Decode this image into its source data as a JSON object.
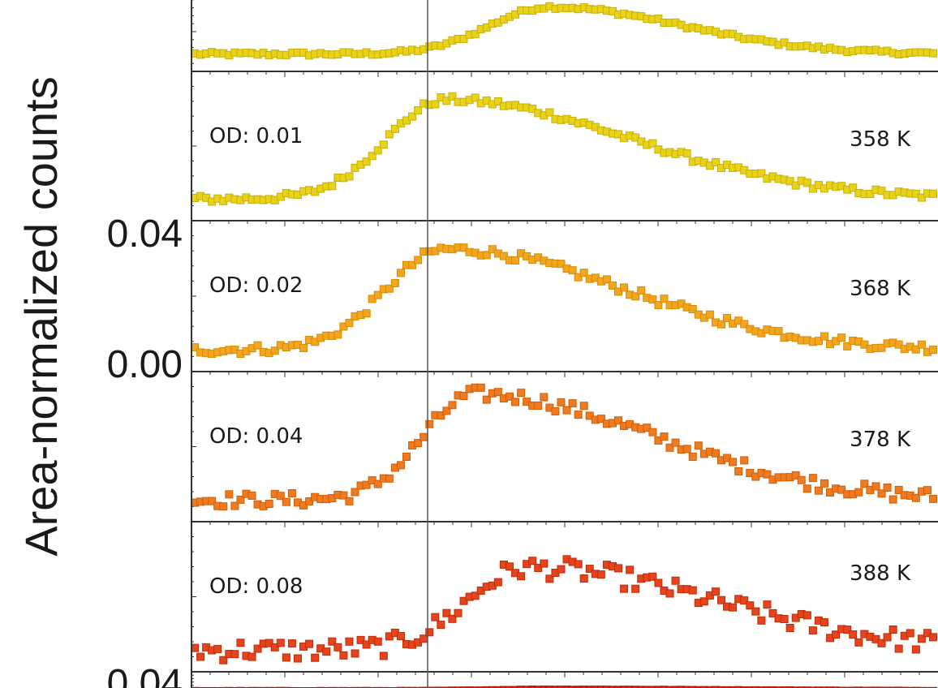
{
  "chart_data": {
    "type": "scatter",
    "ylabel": "Area-normalized counts",
    "y_tick_labels": [
      "0.04",
      "0.00",
      "0.04"
    ],
    "panels": [
      {
        "od": "",
        "temperature": "",
        "color": "#e8d21a",
        "edge": "#c9b000",
        "peak_x": 0.48,
        "width_l": 0.08,
        "width_r": 0.18,
        "amplitude": 1.0,
        "noise": 0.04
      },
      {
        "od": "OD: 0.01",
        "temperature": "358 K",
        "color": "#e8d21a",
        "edge": "#c9b000",
        "peak_x": 0.34,
        "width_l": 0.08,
        "width_r": 0.25,
        "amplitude": 0.85,
        "noise": 0.03
      },
      {
        "od": "OD: 0.02",
        "temperature": "368 K",
        "color": "#f2a51e",
        "edge": "#d98a00",
        "peak_x": 0.34,
        "width_l": 0.08,
        "width_r": 0.24,
        "amplitude": 0.85,
        "noise": 0.04
      },
      {
        "od": "OD: 0.04",
        "temperature": "378 K",
        "color": "#ee7a22",
        "edge": "#d55d00",
        "peak_x": 0.38,
        "width_l": 0.07,
        "width_r": 0.24,
        "amplitude": 0.9,
        "noise": 0.06
      },
      {
        "od": "OD: 0.08",
        "temperature": "388 K",
        "color": "#e4441f",
        "edge": "#c22b00",
        "peak_x": 0.45,
        "width_l": 0.08,
        "width_r": 0.25,
        "amplitude": 0.7,
        "noise": 0.09
      },
      {
        "od": "",
        "temperature": "",
        "color": "#d6261b",
        "edge": "#b00e00",
        "peak_x": 0.48,
        "width_l": 0.08,
        "width_r": 0.25,
        "amplitude": 0.9,
        "noise": 0.1
      }
    ],
    "reference_line_x": 0.325,
    "grid": false,
    "legend": "none"
  }
}
